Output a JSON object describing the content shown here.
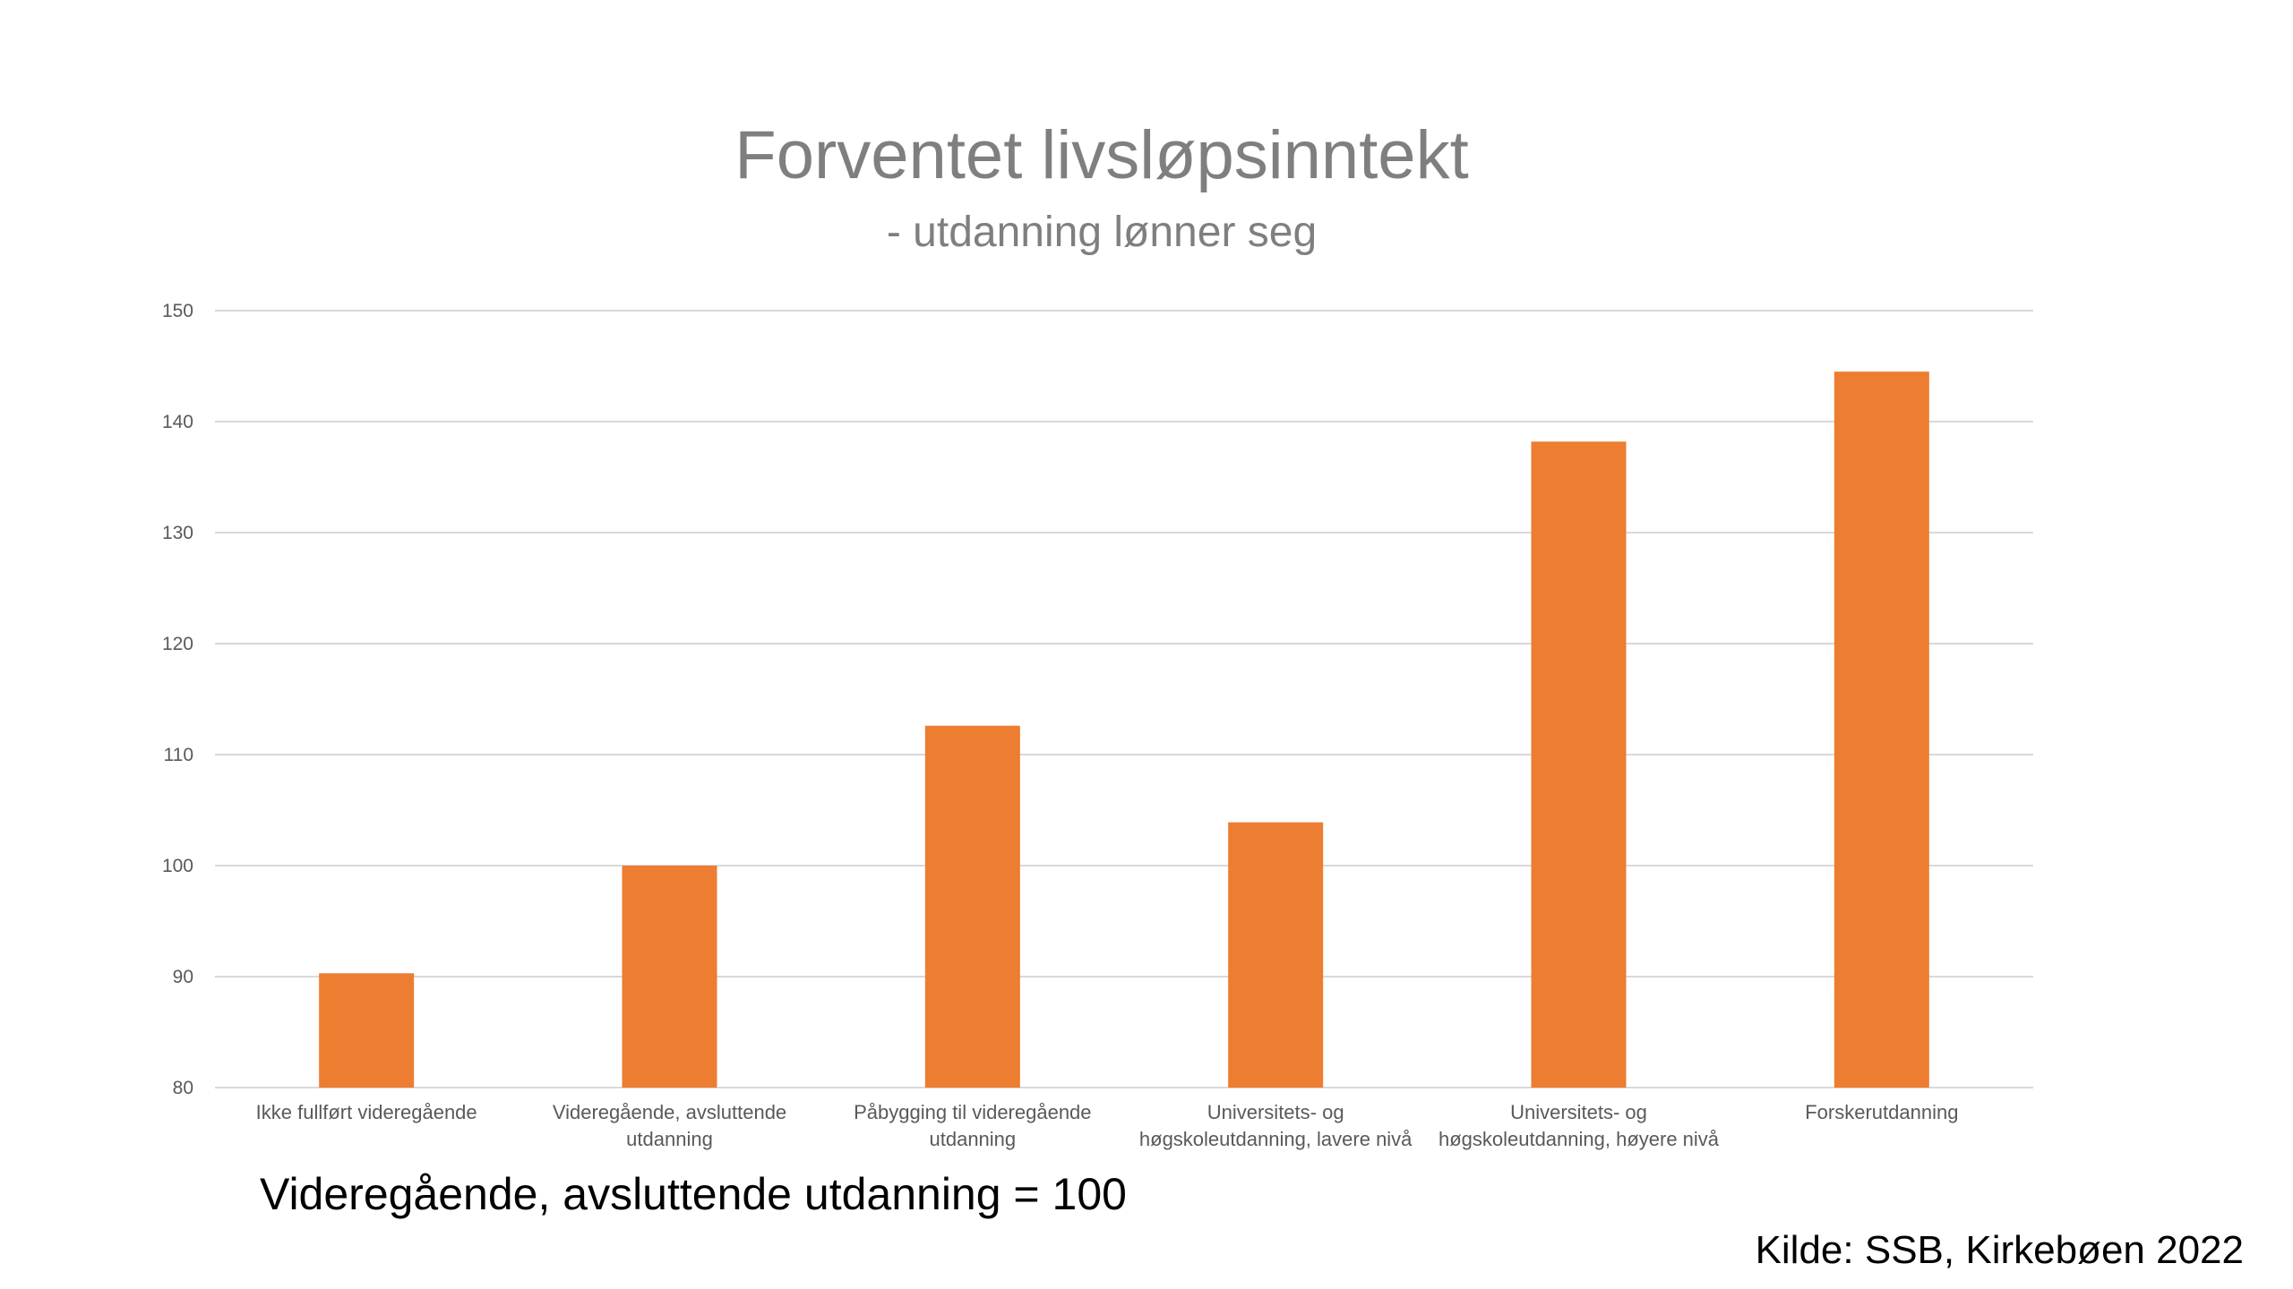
{
  "chart_data": {
    "type": "bar",
    "title": "Forventet livsløpsinntekt",
    "subtitle": "- utdanning lønner seg",
    "xlabel": "",
    "ylabel": "",
    "ylim": [
      80,
      150
    ],
    "yticks": [
      80,
      90,
      100,
      110,
      120,
      130,
      140,
      150
    ],
    "grid": true,
    "legend": "none",
    "categories": [
      [
        "Ikke fullført videregående"
      ],
      [
        "Videregående, avsluttende",
        "utdanning"
      ],
      [
        "Påbygging til videregående",
        "utdanning"
      ],
      [
        "Universitets- og",
        "høgskoleutdanning, lavere nivå"
      ],
      [
        "Universitets- og",
        "høgskoleutdanning, høyere nivå"
      ],
      [
        "Forskerutdanning"
      ]
    ],
    "series": [
      {
        "values": [
          90.3,
          100.0,
          112.6,
          103.9,
          138.2,
          144.5
        ],
        "color": "#ed7d31"
      }
    ]
  },
  "notes": {
    "index": "Videregående, avsluttende utdanning = 100",
    "source": "Kilde: SSB, Kirkebøen 2022"
  },
  "colors": {
    "bar": "#ed7d31",
    "grid": "#d9d9d9",
    "title": "#7f7f7f",
    "axis_text": "#595959"
  }
}
